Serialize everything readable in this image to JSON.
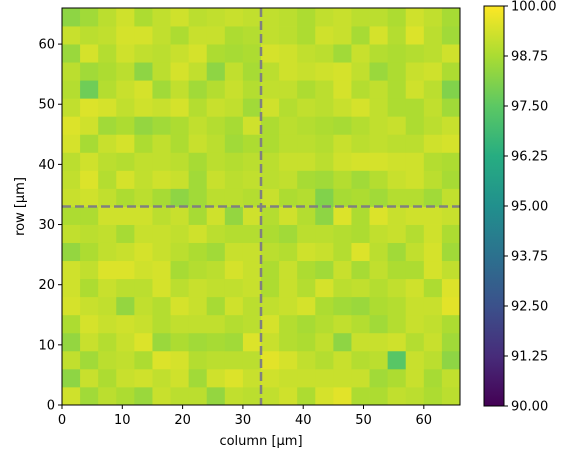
{
  "chart_data": {
    "type": "heatmap",
    "title": "",
    "xlabel": "column [µm]",
    "ylabel": "row [µm]",
    "xlim": [
      0,
      66
    ],
    "ylim": [
      0,
      66
    ],
    "cell_size": 3,
    "grid_rows": 22,
    "grid_cols": 22,
    "x_ticks": [
      "0",
      "10",
      "20",
      "30",
      "40",
      "50",
      "60"
    ],
    "y_ticks": [
      "0",
      "10",
      "20",
      "30",
      "40",
      "50",
      "60"
    ],
    "colormap": "viridis",
    "color_range": [
      90,
      100
    ],
    "colorbar_ticks": [
      "90.00",
      "91.25",
      "92.50",
      "93.75",
      "95.00",
      "96.25",
      "97.50",
      "98.75",
      "100.00"
    ],
    "crosshair": {
      "x": 33,
      "y": 33,
      "color": "#808080",
      "style": "dashed"
    },
    "values": [
      [
        99.3,
        98.6,
        99.0,
        98.8,
        98.5,
        99.2,
        99.0,
        99.0,
        98.4,
        99.1,
        99.0,
        99.1,
        99.3,
        98.8,
        99.4,
        99.6,
        98.8,
        98.8,
        99.1,
        99.0,
        98.8,
        99.0
      ],
      [
        98.3,
        99.2,
        98.8,
        99.2,
        99.3,
        99.1,
        99.3,
        98.6,
        99.3,
        99.5,
        99.2,
        99.3,
        99.2,
        99.2,
        99.2,
        99.2,
        99.2,
        98.6,
        98.8,
        99.2,
        98.7,
        99.1
      ],
      [
        99.1,
        98.6,
        99.0,
        99.1,
        98.8,
        99.5,
        99.4,
        98.9,
        99.0,
        99.0,
        99.0,
        99.6,
        99.4,
        99.1,
        98.9,
        99.2,
        98.9,
        99.0,
        97.4,
        99.2,
        99.0,
        98.3
      ],
      [
        98.4,
        99.2,
        98.9,
        99.2,
        99.5,
        98.5,
        98.8,
        98.6,
        98.7,
        98.6,
        99.5,
        99.2,
        98.9,
        98.8,
        99.1,
        98.3,
        99.2,
        99.2,
        99.3,
        98.9,
        99.2,
        98.6
      ],
      [
        98.8,
        99.4,
        99.2,
        99.3,
        99.2,
        98.9,
        99.1,
        99.1,
        99.1,
        98.9,
        99.0,
        99.4,
        98.9,
        98.7,
        98.9,
        99.1,
        98.9,
        98.6,
        98.9,
        99.2,
        99.1,
        98.8
      ],
      [
        99.4,
        99.2,
        99.1,
        98.4,
        99.1,
        98.9,
        99.4,
        99.2,
        98.7,
        99.3,
        99.0,
        99.1,
        99.2,
        99.4,
        98.8,
        98.6,
        98.5,
        98.8,
        98.9,
        99.2,
        99.2,
        99.6
      ],
      [
        99.3,
        98.8,
        99.2,
        99.0,
        99.0,
        99.4,
        99.0,
        99.2,
        99.1,
        99.1,
        99.2,
        98.8,
        99.2,
        98.9,
        99.4,
        99.0,
        99.1,
        98.9,
        99.1,
        99.3,
        98.8,
        99.5
      ],
      [
        99.3,
        99.1,
        99.5,
        99.5,
        99.3,
        99.4,
        98.7,
        98.9,
        99.0,
        99.4,
        99.2,
        98.8,
        99.2,
        98.8,
        98.6,
        99.2,
        98.7,
        99.1,
        98.8,
        98.8,
        99.4,
        99.1
      ],
      [
        98.4,
        98.8,
        99.1,
        99.2,
        99.4,
        99.2,
        99.0,
        98.8,
        98.6,
        99.2,
        99.2,
        99.0,
        98.9,
        99.3,
        99.2,
        98.9,
        99.5,
        99.0,
        98.6,
        99.1,
        99.4,
        98.6
      ],
      [
        99.1,
        99.0,
        99.1,
        98.7,
        99.2,
        99.2,
        99.1,
        99.3,
        99.0,
        98.9,
        98.9,
        98.8,
        98.6,
        99.0,
        99.0,
        98.9,
        98.8,
        99.1,
        99.2,
        98.9,
        99.3,
        98.8
      ],
      [
        98.8,
        98.8,
        99.3,
        99.3,
        99.3,
        99.0,
        99.2,
        98.7,
        99.3,
        98.4,
        99.3,
        98.9,
        99.3,
        98.9,
        98.3,
        99.5,
        98.8,
        99.5,
        99.2,
        99.3,
        99.3,
        99.2
      ],
      [
        99.2,
        99.3,
        99.1,
        98.8,
        99.0,
        98.7,
        98.3,
        98.6,
        99.0,
        99.0,
        98.9,
        99.2,
        98.8,
        98.9,
        98.1,
        98.7,
        98.8,
        98.6,
        98.9,
        98.9,
        98.6,
        99.1
      ],
      [
        99.1,
        99.5,
        98.9,
        99.4,
        99.1,
        99.3,
        99.2,
        98.6,
        99.2,
        99.0,
        99.1,
        99.0,
        99.1,
        98.7,
        98.6,
        98.9,
        98.6,
        98.9,
        99.2,
        99.3,
        99.0,
        98.7
      ],
      [
        99.0,
        99.3,
        99.0,
        98.9,
        99.1,
        99.1,
        99.0,
        98.7,
        99.0,
        98.9,
        99.0,
        99.0,
        99.2,
        99.2,
        99.0,
        99.3,
        99.4,
        99.4,
        99.3,
        99.3,
        98.9,
        98.8
      ],
      [
        99.4,
        98.7,
        99.2,
        99.4,
        98.8,
        99.1,
        98.8,
        99.2,
        99.0,
        98.6,
        98.8,
        98.8,
        99.0,
        99.0,
        98.9,
        99.2,
        99.0,
        99.1,
        99.0,
        99.0,
        99.3,
        99.4
      ],
      [
        99.5,
        99.3,
        98.6,
        98.8,
        98.4,
        98.6,
        98.8,
        99.1,
        98.9,
        98.7,
        99.3,
        98.8,
        99.0,
        98.9,
        98.8,
        98.7,
        98.9,
        99.1,
        99.2,
        98.8,
        99.0,
        99.2
      ],
      [
        99.1,
        99.5,
        99.4,
        99.1,
        99.3,
        99.2,
        99.4,
        98.9,
        99.2,
        99.1,
        98.6,
        99.3,
        98.9,
        99.1,
        99.0,
        99.2,
        99.4,
        99.1,
        98.8,
        98.8,
        99.1,
        98.6
      ],
      [
        98.9,
        97.8,
        98.9,
        99.2,
        99.4,
        98.6,
        99.1,
        98.6,
        98.9,
        99.2,
        98.9,
        99.1,
        99.1,
        98.8,
        99.0,
        99.4,
        98.9,
        99.1,
        98.8,
        99.3,
        99.0,
        98.1
      ],
      [
        99.0,
        98.6,
        98.8,
        99.0,
        98.3,
        99.0,
        99.4,
        99.1,
        98.3,
        99.1,
        98.7,
        99.0,
        99.3,
        99.2,
        99.3,
        99.4,
        99.1,
        98.5,
        98.8,
        99.2,
        99.3,
        98.8
      ],
      [
        98.5,
        99.4,
        98.9,
        99.3,
        99.1,
        99.0,
        99.2,
        99.4,
        98.8,
        98.7,
        98.8,
        99.4,
        99.3,
        99.1,
        99.0,
        98.6,
        99.2,
        98.9,
        98.8,
        98.9,
        99.0,
        99.3
      ],
      [
        99.2,
        99.0,
        99.1,
        99.4,
        99.4,
        99.1,
        98.8,
        99.2,
        99.2,
        98.8,
        98.9,
        99.1,
        99.0,
        98.8,
        99.3,
        99.2,
        98.7,
        99.4,
        98.9,
        99.5,
        99.0,
        98.6
      ],
      [
        98.3,
        98.6,
        99.0,
        99.3,
        98.8,
        99.1,
        99.3,
        99.0,
        99.1,
        99.2,
        99.1,
        99.1,
        99.0,
        98.8,
        99.1,
        99.2,
        99.0,
        99.0,
        98.8,
        99.3,
        99.1,
        98.7
      ]
    ]
  }
}
